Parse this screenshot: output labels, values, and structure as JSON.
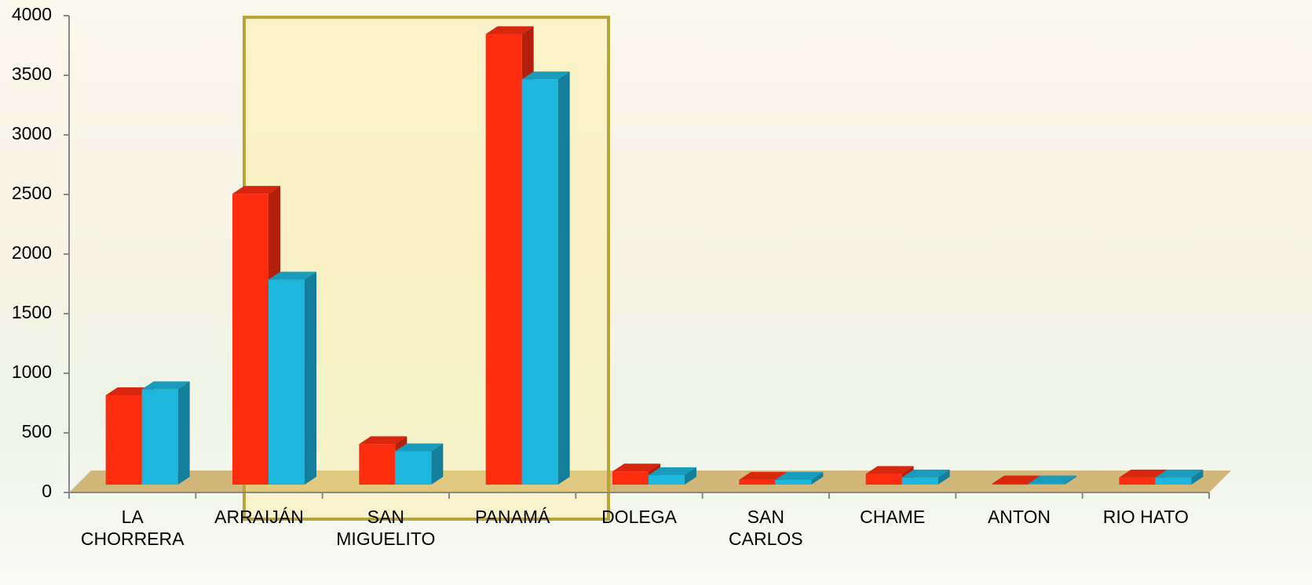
{
  "chart_data": {
    "type": "bar3d",
    "categories": [
      "LA\nCHORRERA",
      "ARRAIJÁN",
      "SAN\nMIGUELITO",
      "PANAMÁ",
      "DOLEGA",
      "SAN\nCARLOS",
      "CHAME",
      "ANTON",
      "RIO HATO"
    ],
    "series": [
      {
        "color": "#ff2d10",
        "values": [
          750,
          2440,
          340,
          3780,
          110,
          40,
          90,
          10,
          60
        ]
      },
      {
        "color": "#1db6dc",
        "values": [
          800,
          1720,
          280,
          3400,
          80,
          40,
          60,
          10,
          60
        ]
      }
    ],
    "ylim": [
      0,
      4000
    ],
    "yticks": [
      0,
      500,
      1000,
      1500,
      2000,
      2500,
      3000,
      3500,
      4000
    ]
  }
}
